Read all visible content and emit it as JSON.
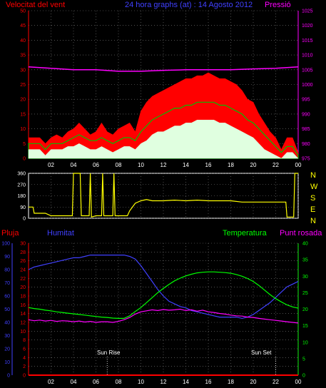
{
  "header": {
    "left": "Velocitat del vent",
    "center": "24 hora graphs (at) : 14 Agosto 2012",
    "right": "Pressió"
  },
  "x_ticks": [
    "02",
    "04",
    "06",
    "08",
    "10",
    "12",
    "14",
    "16",
    "18",
    "20",
    "22",
    "00"
  ],
  "bottom_x_ticks": [
    "02",
    "04",
    "06",
    "08",
    "10",
    "12",
    "14",
    "16",
    "18",
    "20",
    "22",
    "00"
  ],
  "bottom_headers": {
    "pluja": "Pluja",
    "humitat": "Humitat",
    "temperatura": "Temperatura",
    "punt_rosada": "Punt rosada"
  },
  "direction_labels": [
    "N",
    "W",
    "S",
    "E",
    "N"
  ],
  "sun_rise": "Sun Rise",
  "sun_set": "Sun Set",
  "colors": {
    "background": "#000000",
    "wind_gust": "#ff0000",
    "wind_avg": "#00c000",
    "wind_min": "#e0ffe0",
    "pressure": "#ff00ff",
    "direction": "#ffff00",
    "humidity": "#4040ff",
    "temperature": "#00ff00",
    "dewpoint": "#ff00ff",
    "rain": "#ff0000",
    "grid": "#808080"
  },
  "chart_data": [
    {
      "type": "area",
      "name": "wind_pressure",
      "xlabel": "",
      "ylabel": "Velocitat del vent",
      "y2label": "Pressió",
      "xlim": [
        0,
        24
      ],
      "ylim": [
        0,
        50
      ],
      "y_ticks": [
        0,
        5,
        10,
        15,
        20,
        25,
        30,
        35,
        40,
        45,
        50
      ],
      "y2lim": [
        975,
        1025
      ],
      "y2_ticks": [
        975,
        980,
        985,
        990,
        995,
        1000,
        1005,
        1010,
        1015,
        1020,
        1025
      ],
      "series": [
        {
          "name": "gust",
          "x": [
            0,
            0.5,
            1,
            1.5,
            2,
            2.5,
            3,
            3.5,
            4,
            4.5,
            5,
            5.5,
            6,
            6.5,
            7,
            7.5,
            8,
            8.5,
            9,
            9.5,
            10,
            10.5,
            11,
            11.5,
            12,
            12.5,
            13,
            13.5,
            14,
            14.5,
            15,
            15.5,
            16,
            16.5,
            17,
            17.5,
            18,
            18.5,
            19,
            19.5,
            20,
            20.5,
            21,
            21.5,
            22,
            22.5,
            23,
            23.5,
            24
          ],
          "values": [
            7,
            7,
            7,
            5,
            7,
            8,
            7,
            9,
            10,
            12,
            10,
            8,
            9,
            12,
            9,
            8,
            10,
            11,
            12,
            9,
            16,
            19,
            21,
            22,
            23,
            24,
            25,
            26,
            27,
            27,
            28,
            28,
            29,
            28,
            27,
            27,
            26,
            25,
            23,
            20,
            19,
            15,
            12,
            9,
            7,
            3,
            7,
            7,
            2
          ]
        },
        {
          "name": "average",
          "x": [
            0,
            0.5,
            1,
            1.5,
            2,
            2.5,
            3,
            3.5,
            4,
            4.5,
            5,
            5.5,
            6,
            6.5,
            7,
            7.5,
            8,
            8.5,
            9,
            9.5,
            10,
            10.5,
            11,
            11.5,
            12,
            12.5,
            13,
            13.5,
            14,
            14.5,
            15,
            15.5,
            16,
            16.5,
            17,
            17.5,
            18,
            18.5,
            19,
            19.5,
            20,
            20.5,
            21,
            21.5,
            22,
            22.5,
            23,
            23.5,
            24
          ],
          "values": [
            5,
            5,
            5,
            3,
            5,
            5,
            5,
            6,
            7,
            8,
            7,
            6,
            6,
            7,
            6,
            5,
            6,
            7,
            7,
            6,
            9,
            11,
            13,
            14,
            15,
            16,
            17,
            17,
            18,
            18,
            19,
            19,
            19,
            19,
            18,
            18,
            17,
            16,
            15,
            13,
            12,
            10,
            8,
            6,
            4,
            2,
            4,
            4,
            1
          ]
        },
        {
          "name": "minimum",
          "x": [
            0,
            0.5,
            1,
            1.5,
            2,
            2.5,
            3,
            3.5,
            4,
            4.5,
            5,
            5.5,
            6,
            6.5,
            7,
            7.5,
            8,
            8.5,
            9,
            9.5,
            10,
            10.5,
            11,
            11.5,
            12,
            12.5,
            13,
            13.5,
            14,
            14.5,
            15,
            15.5,
            16,
            16.5,
            17,
            17.5,
            18,
            18.5,
            19,
            19.5,
            20,
            20.5,
            21,
            21.5,
            22,
            22.5,
            23,
            23.5,
            24
          ],
          "values": [
            3,
            3,
            3,
            1,
            3,
            3,
            3,
            4,
            4,
            5,
            4,
            3,
            3,
            4,
            3,
            2,
            3,
            4,
            4,
            3,
            5,
            6,
            8,
            9,
            9,
            10,
            11,
            11,
            12,
            12,
            13,
            13,
            13,
            13,
            12,
            12,
            11,
            10,
            9,
            8,
            7,
            5,
            3,
            2,
            1,
            0,
            2,
            2,
            0
          ]
        },
        {
          "name": "pressure",
          "x": [
            0,
            2,
            4,
            6,
            8,
            10,
            12,
            14,
            16,
            18,
            20,
            22,
            24
          ],
          "values": [
            1006,
            1005.5,
            1005,
            1005,
            1004.5,
            1004.5,
            1004.8,
            1005,
            1005,
            1005,
            1005.3,
            1005.5,
            1006
          ]
        }
      ]
    },
    {
      "type": "line",
      "name": "wind_direction",
      "ylim": [
        0,
        360
      ],
      "y_ticks": [
        0,
        90,
        180,
        270,
        360
      ],
      "xlim": [
        0,
        24
      ],
      "series": [
        {
          "name": "direction",
          "x": [
            0,
            0.4,
            0.5,
            1,
            1.5,
            2,
            2.4,
            2.5,
            3,
            3.5,
            3.9,
            4,
            4.6,
            4.7,
            5,
            5.4,
            5.5,
            5.6,
            6,
            6.5,
            6.6,
            6.7,
            7,
            7.5,
            7.6,
            7.7,
            8,
            8.5,
            8.8,
            9,
            9.5,
            10,
            10.5,
            11,
            12,
            13,
            14,
            15,
            16,
            17,
            18,
            19,
            20,
            21,
            22,
            22.9,
            23,
            23.6,
            23.7,
            24
          ],
          "values": [
            90,
            90,
            40,
            40,
            40,
            20,
            20,
            20,
            20,
            20,
            20,
            360,
            360,
            20,
            20,
            20,
            360,
            10,
            20,
            20,
            360,
            20,
            20,
            20,
            360,
            20,
            20,
            20,
            20,
            60,
            120,
            140,
            150,
            140,
            140,
            145,
            140,
            145,
            140,
            140,
            140,
            130,
            130,
            130,
            130,
            130,
            10,
            10,
            360,
            360
          ]
        }
      ]
    },
    {
      "type": "line",
      "name": "humidity_temperature",
      "xlim": [
        0,
        24
      ],
      "ylim": [
        0,
        100
      ],
      "y_ticks": [
        0,
        10,
        20,
        30,
        40,
        50,
        60,
        70,
        80,
        90,
        100
      ],
      "ylabel": "Humitat",
      "y_rain_lim": [
        0,
        30
      ],
      "y_rain_ticks": [
        0,
        2,
        4,
        6,
        8,
        10,
        12,
        14,
        16,
        18,
        20,
        22,
        24,
        26,
        28,
        30
      ],
      "y2lim": [
        0,
        40
      ],
      "y2_ticks": [
        0,
        5,
        10,
        15,
        20,
        25,
        30,
        35,
        40
      ],
      "series": [
        {
          "name": "Humitat",
          "axis": "humidity",
          "x": [
            0,
            0.5,
            1,
            1.5,
            2,
            2.5,
            3,
            3.5,
            4,
            4.5,
            5,
            5.5,
            6,
            6.5,
            7,
            7.5,
            8,
            8.5,
            9,
            9.5,
            10,
            10.5,
            11,
            11.5,
            12,
            12.5,
            13,
            13.5,
            14,
            14.5,
            15,
            15.5,
            16,
            16.5,
            17,
            17.5,
            18,
            18.5,
            19,
            19.5,
            20,
            20.5,
            21,
            21.5,
            22,
            22.5,
            23,
            23.5,
            24
          ],
          "values": [
            80,
            82,
            83,
            84,
            85,
            86,
            87,
            88,
            89,
            89,
            90,
            91,
            91,
            91,
            91,
            91,
            91,
            91,
            90,
            88,
            83,
            77,
            71,
            65,
            60,
            56,
            54,
            52,
            51,
            49,
            48,
            47,
            46,
            45,
            44,
            44,
            44,
            44,
            43,
            44,
            46,
            49,
            52,
            55,
            59,
            63,
            67,
            69,
            71
          ]
        },
        {
          "name": "Temperatura",
          "axis": "temp",
          "x": [
            0,
            0.5,
            1,
            1.5,
            2,
            2.5,
            3,
            3.5,
            4,
            4.5,
            5,
            5.5,
            6,
            6.5,
            7,
            7.5,
            8,
            8.5,
            9,
            9.5,
            10,
            10.5,
            11,
            11.5,
            12,
            12.5,
            13,
            13.5,
            14,
            14.5,
            15,
            15.5,
            16,
            16.5,
            17,
            17.5,
            18,
            18.5,
            19,
            19.5,
            20,
            20.5,
            21,
            21.5,
            22,
            22.5,
            23,
            23.5,
            24
          ],
          "values": [
            20.5,
            20.2,
            20,
            19.7,
            19.5,
            19.2,
            19,
            18.8,
            18.6,
            18.4,
            18.2,
            18,
            17.8,
            17.6,
            17.5,
            17.3,
            17.2,
            17.2,
            18,
            19.3,
            20.5,
            22,
            23.5,
            25,
            26.3,
            27.5,
            28.6,
            29.4,
            30.1,
            30.6,
            31,
            31.2,
            31.3,
            31.3,
            31.2,
            31.1,
            30.9,
            30.5,
            30,
            29.3,
            28.4,
            27.2,
            25.8,
            24.4,
            23.2,
            22.2,
            21.3,
            20.7,
            20.3
          ]
        },
        {
          "name": "Punt rosada",
          "axis": "temp",
          "x": [
            0,
            0.5,
            1,
            1.5,
            2,
            2.5,
            3,
            3.5,
            4,
            4.5,
            5,
            5.5,
            6,
            6.5,
            7,
            7.5,
            8,
            8.5,
            9,
            9.5,
            10,
            10.5,
            11,
            11.5,
            12,
            12.5,
            13,
            13.5,
            14,
            14.5,
            15,
            15.5,
            16,
            16.5,
            17,
            17.5,
            18,
            18.5,
            19,
            19.5,
            20,
            20.5,
            21,
            21.5,
            22,
            22.5,
            23,
            23.5,
            24
          ],
          "values": [
            16.8,
            16.5,
            16.7,
            16.4,
            16.6,
            16.3,
            16.5,
            16.4,
            16.2,
            16.4,
            16.1,
            16.3,
            16.0,
            16.2,
            16.2,
            16.0,
            16.3,
            16.8,
            17.5,
            18.5,
            19.2,
            19.5,
            19.8,
            19.6,
            19.9,
            19.7,
            19.8,
            20.0,
            19.6,
            19.8,
            19.4,
            19.7,
            19.2,
            19.0,
            18.7,
            18.5,
            18.2,
            18.0,
            17.9,
            17.6,
            17.5,
            17.2,
            17.0,
            16.8,
            16.6,
            16.4,
            16.2,
            16.0,
            15.8
          ]
        },
        {
          "name": "Pluja",
          "axis": "rain",
          "x": [
            0,
            24
          ],
          "values": [
            0,
            0
          ]
        }
      ],
      "events": [
        {
          "label": "Sun Rise",
          "x": 7
        },
        {
          "label": "Sun Set",
          "x": 22
        }
      ]
    }
  ]
}
